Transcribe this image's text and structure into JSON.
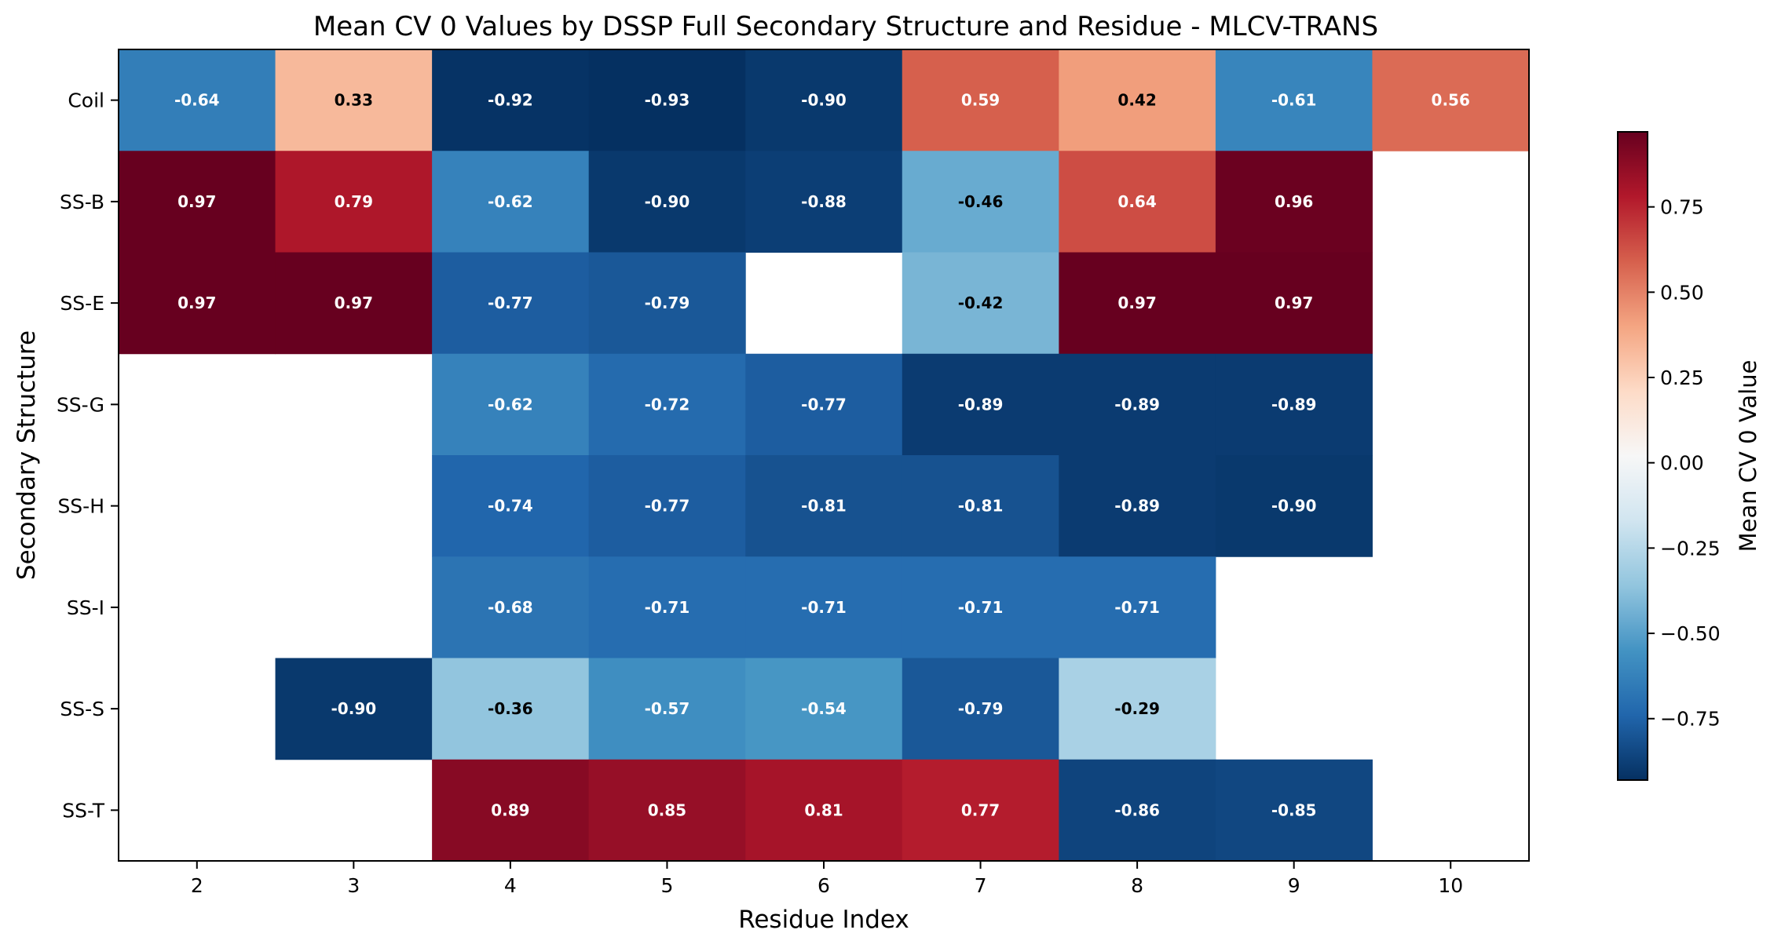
{
  "chart_data": {
    "type": "heatmap",
    "title": "Mean CV 0 Values by DSSP Full Secondary Structure and Residue - MLCV-TRANS",
    "xlabel": "Residue Index",
    "ylabel": "Secondary Structure",
    "x_categories": [
      "2",
      "3",
      "4",
      "5",
      "6",
      "7",
      "8",
      "9",
      "10"
    ],
    "y_categories": [
      "Coil",
      "SS-B",
      "SS-E",
      "SS-G",
      "SS-H",
      "SS-I",
      "SS-S",
      "SS-T"
    ],
    "values": [
      [
        -0.64,
        0.33,
        -0.92,
        -0.93,
        -0.9,
        0.59,
        0.42,
        -0.61,
        0.56
      ],
      [
        0.97,
        0.79,
        -0.62,
        -0.9,
        -0.88,
        -0.46,
        0.64,
        0.96,
        null
      ],
      [
        0.97,
        0.97,
        -0.77,
        -0.79,
        null,
        -0.42,
        0.97,
        0.97,
        null
      ],
      [
        null,
        null,
        -0.62,
        -0.72,
        -0.77,
        -0.89,
        -0.89,
        -0.89,
        null
      ],
      [
        null,
        null,
        -0.74,
        -0.77,
        -0.81,
        -0.81,
        -0.89,
        -0.9,
        null
      ],
      [
        null,
        null,
        -0.68,
        -0.71,
        -0.71,
        -0.71,
        -0.71,
        null,
        null
      ],
      [
        null,
        -0.9,
        -0.36,
        -0.57,
        -0.54,
        -0.79,
        -0.29,
        null,
        null
      ],
      [
        null,
        null,
        0.89,
        0.85,
        0.81,
        0.77,
        -0.86,
        -0.85,
        null
      ]
    ],
    "value_labels": [
      [
        "-0.64",
        "0.33",
        "-0.92",
        "-0.93",
        "-0.90",
        "0.59",
        "0.42",
        "-0.61",
        "0.56"
      ],
      [
        "0.97",
        "0.79",
        "-0.62",
        "-0.90",
        "-0.88",
        "-0.46",
        "0.64",
        "0.96",
        ""
      ],
      [
        "0.97",
        "0.97",
        "-0.77",
        "-0.79",
        "",
        "-0.42",
        "0.97",
        "0.97",
        ""
      ],
      [
        "",
        "",
        "-0.62",
        "-0.72",
        "-0.77",
        "-0.89",
        "-0.89",
        "-0.89",
        ""
      ],
      [
        "",
        "",
        "-0.74",
        "-0.77",
        "-0.81",
        "-0.81",
        "-0.89",
        "-0.90",
        ""
      ],
      [
        "",
        "",
        "-0.68",
        "-0.71",
        "-0.71",
        "-0.71",
        "-0.71",
        "",
        ""
      ],
      [
        "",
        "-0.90",
        "-0.36",
        "-0.57",
        "-0.54",
        "-0.79",
        "-0.29",
        "",
        ""
      ],
      [
        "",
        "",
        "0.89",
        "0.85",
        "0.81",
        "0.77",
        "-0.86",
        "-0.85",
        ""
      ]
    ],
    "colormap": "RdBu_r",
    "colorbar": {
      "label": "Mean CV 0 Value",
      "range": [
        -0.93,
        0.97
      ],
      "ticks": [
        -0.75,
        -0.5,
        -0.25,
        0.0,
        0.25,
        0.5,
        0.75
      ],
      "tick_labels": [
        "−0.75",
        "−0.50",
        "−0.25",
        "0.00",
        "0.25",
        "0.50",
        "0.75"
      ]
    },
    "legend": "colorbar-right",
    "grid": false
  }
}
